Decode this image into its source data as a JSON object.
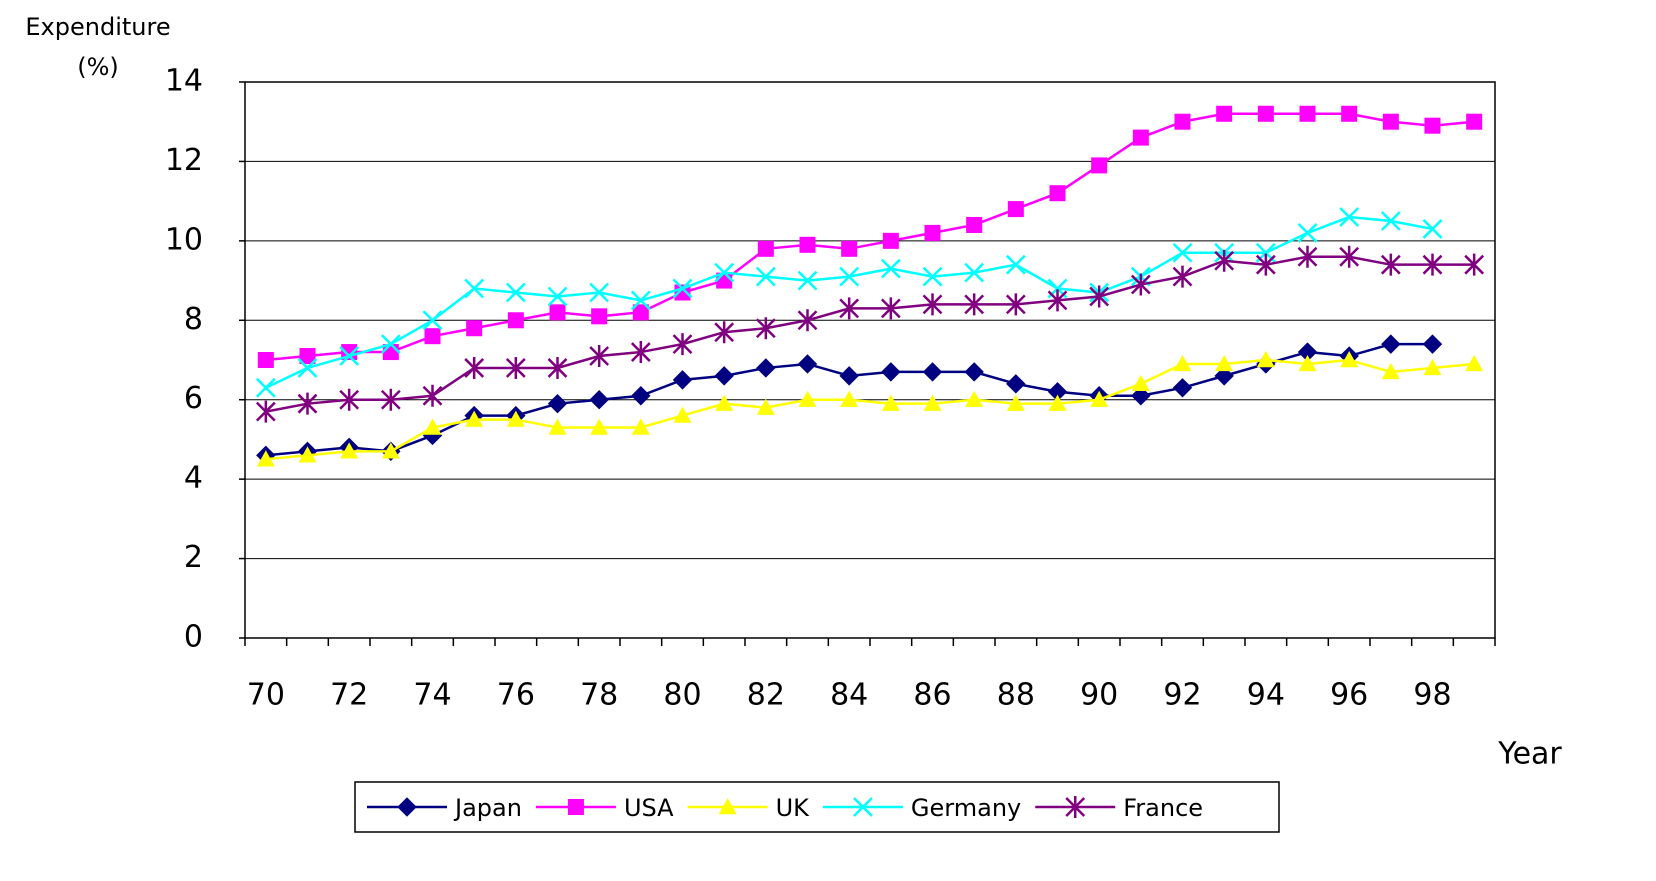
{
  "chart_data": {
    "type": "line",
    "ylabel": "Expenditure",
    "yunit": "(%)",
    "xlabel": "Year",
    "categories": [
      "70",
      null,
      "72",
      null,
      "74",
      null,
      "76",
      null,
      "78",
      null,
      "80",
      null,
      "82",
      null,
      "84",
      null,
      "86",
      null,
      "88",
      null,
      "90",
      null,
      "92",
      null,
      "94",
      null,
      "96",
      null,
      "98",
      null
    ],
    "ylim": [
      0,
      14
    ],
    "yticks": [
      0,
      2,
      4,
      6,
      8,
      10,
      12,
      14
    ],
    "grid": true,
    "legend": "bottom",
    "series": [
      {
        "name": "Japan",
        "color": "#000080",
        "marker": "diamond",
        "values": [
          4.6,
          4.7,
          4.8,
          4.7,
          5.1,
          5.6,
          5.6,
          5.9,
          6.0,
          6.1,
          6.5,
          6.6,
          6.8,
          6.9,
          6.6,
          6.7,
          6.7,
          6.7,
          6.4,
          6.2,
          6.1,
          6.1,
          6.3,
          6.6,
          6.9,
          7.2,
          7.1,
          7.4,
          7.4,
          null
        ]
      },
      {
        "name": "USA",
        "color": "#ff00ff",
        "marker": "square",
        "values": [
          7.0,
          7.1,
          7.2,
          7.2,
          7.6,
          7.8,
          8.0,
          8.2,
          8.1,
          8.2,
          8.7,
          9.0,
          9.8,
          9.9,
          9.8,
          10.0,
          10.2,
          10.4,
          10.8,
          11.2,
          11.9,
          12.6,
          13.0,
          13.2,
          13.2,
          13.2,
          13.2,
          13.0,
          12.9,
          13.0
        ]
      },
      {
        "name": "UK",
        "color": "#ffff00",
        "marker": "triangle",
        "values": [
          4.5,
          4.6,
          4.7,
          4.7,
          5.3,
          5.5,
          5.5,
          5.3,
          5.3,
          5.3,
          5.6,
          5.9,
          5.8,
          6.0,
          6.0,
          5.9,
          5.9,
          6.0,
          5.9,
          5.9,
          6.0,
          6.4,
          6.9,
          6.9,
          7.0,
          6.9,
          7.0,
          6.7,
          6.8,
          6.9
        ]
      },
      {
        "name": "Germany",
        "color": "#00ffff",
        "marker": "x",
        "values": [
          6.3,
          6.8,
          7.1,
          7.4,
          8.0,
          8.8,
          8.7,
          8.6,
          8.7,
          8.5,
          8.8,
          9.2,
          9.1,
          9.0,
          9.1,
          9.3,
          9.1,
          9.2,
          9.4,
          8.8,
          8.7,
          9.1,
          9.7,
          9.7,
          9.7,
          10.2,
          10.6,
          10.5,
          10.3,
          null
        ]
      },
      {
        "name": "France",
        "color": "#800080",
        "marker": "asterisk",
        "values": [
          5.7,
          5.9,
          6.0,
          6.0,
          6.1,
          6.8,
          6.8,
          6.8,
          7.1,
          7.2,
          7.4,
          7.7,
          7.8,
          8.0,
          8.3,
          8.3,
          8.4,
          8.4,
          8.4,
          8.5,
          8.6,
          8.9,
          9.1,
          9.5,
          9.4,
          9.6,
          9.6,
          9.4,
          9.4,
          9.4
        ]
      }
    ]
  }
}
